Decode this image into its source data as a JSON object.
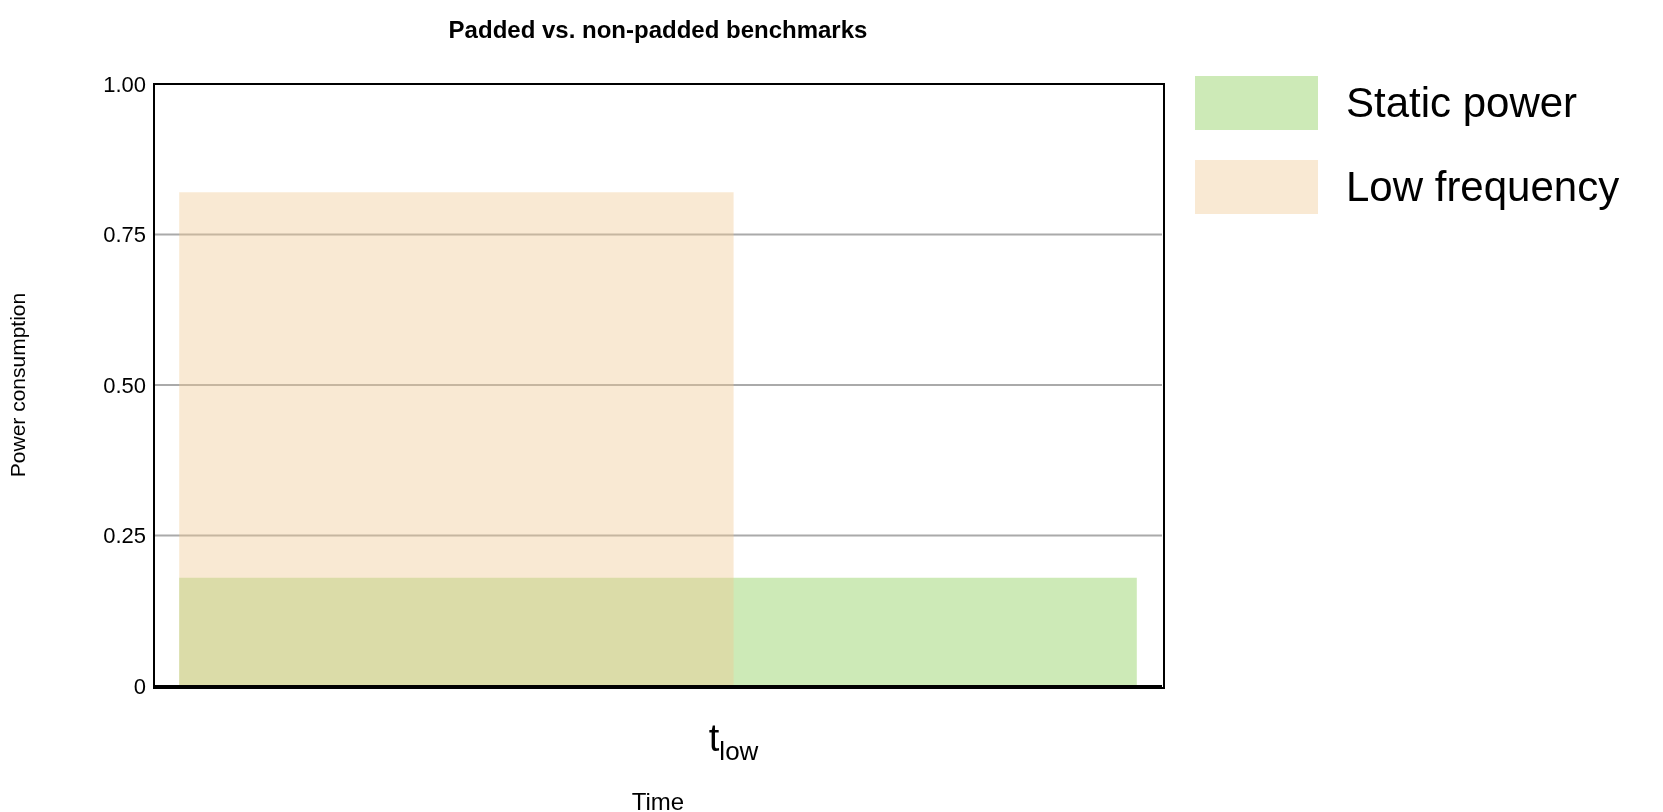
{
  "chart_data": {
    "type": "area",
    "title": "Padded vs. non-padded benchmarks",
    "xlabel": "Time",
    "ylabel": "Power consumption",
    "categories": [
      null,
      null,
      null,
      null,
      null,
      null,
      null,
      null,
      null,
      null,
      null,
      null,
      null,
      null,
      null,
      null,
      null,
      null,
      null,
      null
    ],
    "series": [
      {
        "name": "Static power",
        "color": "#cdeab7",
        "values": [
          0.18,
          0.18,
          0.18,
          0.18,
          0.18,
          0.18,
          0.18,
          0.18,
          0.18,
          0.18,
          0.18,
          0.18,
          0.18,
          0.18,
          0.18,
          0.18,
          0.18,
          0.18,
          0.18,
          0.18
        ]
      },
      {
        "name": "Low frequency",
        "color": "#f9e9d3",
        "values": [
          0.82,
          0.82,
          0.82,
          0.82,
          0.82,
          0.82,
          0.82,
          0.82,
          0.82,
          0.82,
          0.82,
          0.82,
          null,
          null,
          null,
          null,
          null,
          null,
          null,
          null
        ]
      }
    ],
    "annotations": [
      "t$_{low}$"
    ],
    "ylim": [
      0,
      1
    ],
    "yticks": [
      {
        "value": 0,
        "label": "0"
      },
      {
        "value": 0.25,
        "label": "0.25"
      },
      {
        "value": 0.5,
        "label": "0.50"
      },
      {
        "value": 0.75,
        "label": "0.75"
      },
      {
        "value": 1,
        "label": "1.00"
      }
    ],
    "grid": "y",
    "legend": "top right"
  }
}
